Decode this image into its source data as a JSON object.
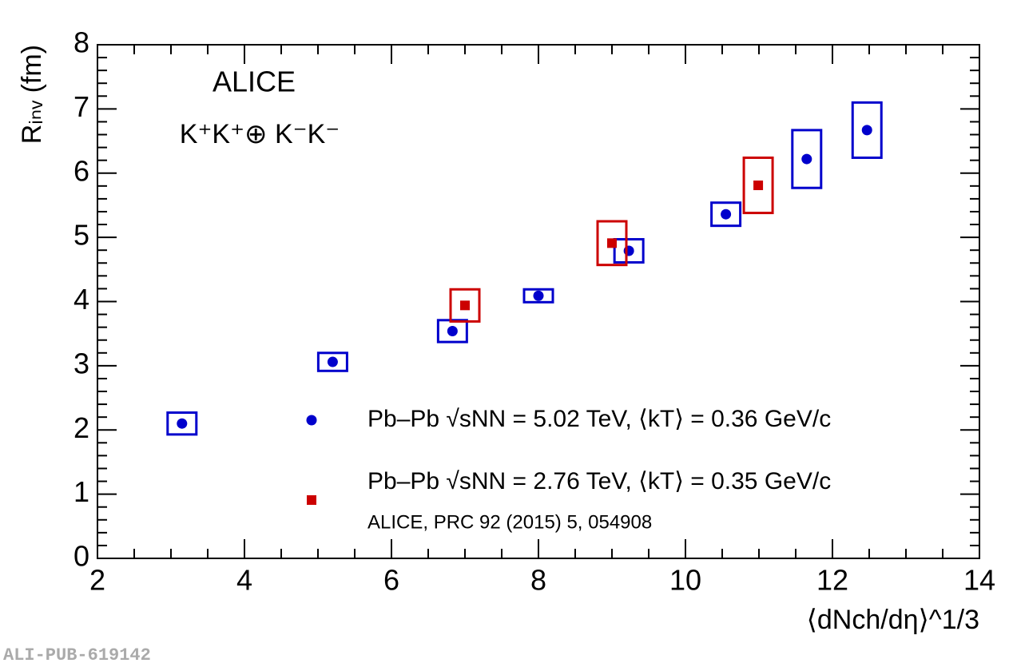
{
  "chart_data": {
    "type": "scatter",
    "annotations": [
      "ALICE",
      "K⁺K⁺⊕ K⁻K⁻",
      "ALICE, PRC 92 (2015) 5, 054908",
      "ALI-PUB-619142"
    ],
    "y_label": "Rᵢₙᵥ (fm)",
    "x_label": "⟨dNch/dη⟩^1/3",
    "xlim": [
      2,
      14
    ],
    "ylim": [
      0,
      8
    ],
    "xticks": [
      2,
      4,
      6,
      8,
      10,
      12,
      14
    ],
    "yticks": [
      0,
      1,
      2,
      3,
      4,
      5,
      6,
      7,
      8
    ],
    "series": [
      {
        "name": "Pb–Pb  √sNN = 5.02 TeV,  ⟨kT⟩ = 0.36 GeV/c",
        "color": "#0000cc",
        "marker": "circle",
        "x": [
          3.15,
          5.2,
          6.83,
          8.0,
          9.23,
          10.55,
          11.65,
          12.47
        ],
        "values": [
          2.1,
          3.06,
          3.54,
          4.09,
          4.79,
          5.36,
          6.22,
          6.67
        ],
        "sys_errors": [
          0.17,
          0.14,
          0.17,
          0.1,
          0.18,
          0.18,
          0.45,
          0.43
        ]
      },
      {
        "name": "Pb–Pb  √sNN = 2.76 TeV,  ⟨kT⟩ = 0.35 GeV/c",
        "color": "#cc0000",
        "marker": "square",
        "x": [
          7.0,
          9.0,
          10.99
        ],
        "values": [
          3.94,
          4.91,
          5.81
        ],
        "sys_errors": [
          0.25,
          0.34,
          0.43
        ]
      }
    ]
  }
}
